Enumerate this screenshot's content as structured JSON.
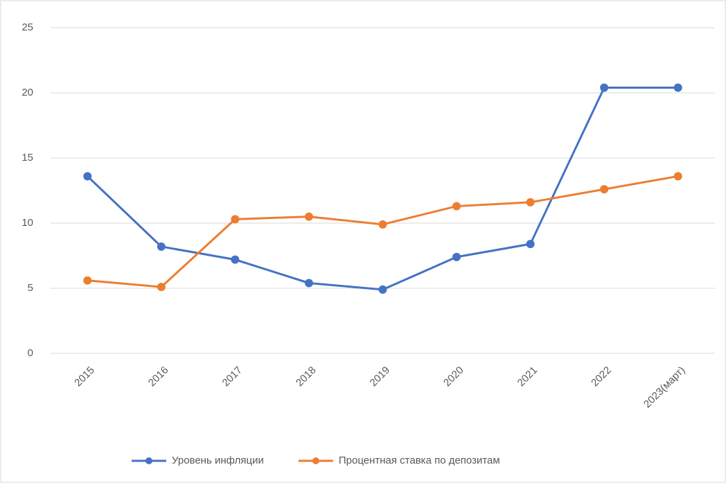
{
  "chart_data": {
    "type": "line",
    "categories": [
      "2015",
      "2016",
      "2017",
      "2018",
      "2019",
      "2020",
      "2021",
      "2022",
      "2023(март)"
    ],
    "series": [
      {
        "name": "Уровень инфляции",
        "color": "#4472c4",
        "values": [
          13.6,
          8.2,
          7.2,
          5.4,
          4.9,
          7.4,
          8.4,
          20.4,
          20.4
        ]
      },
      {
        "name": "Процентная ставка по депозитам",
        "color": "#ed7d31",
        "values": [
          5.6,
          5.1,
          10.3,
          10.5,
          9.9,
          11.3,
          11.6,
          12.6,
          13.6
        ]
      }
    ],
    "ylim": [
      0,
      25
    ],
    "yticks": [
      0,
      5,
      10,
      15,
      20,
      25
    ],
    "grid": true,
    "legend": "bottom"
  }
}
